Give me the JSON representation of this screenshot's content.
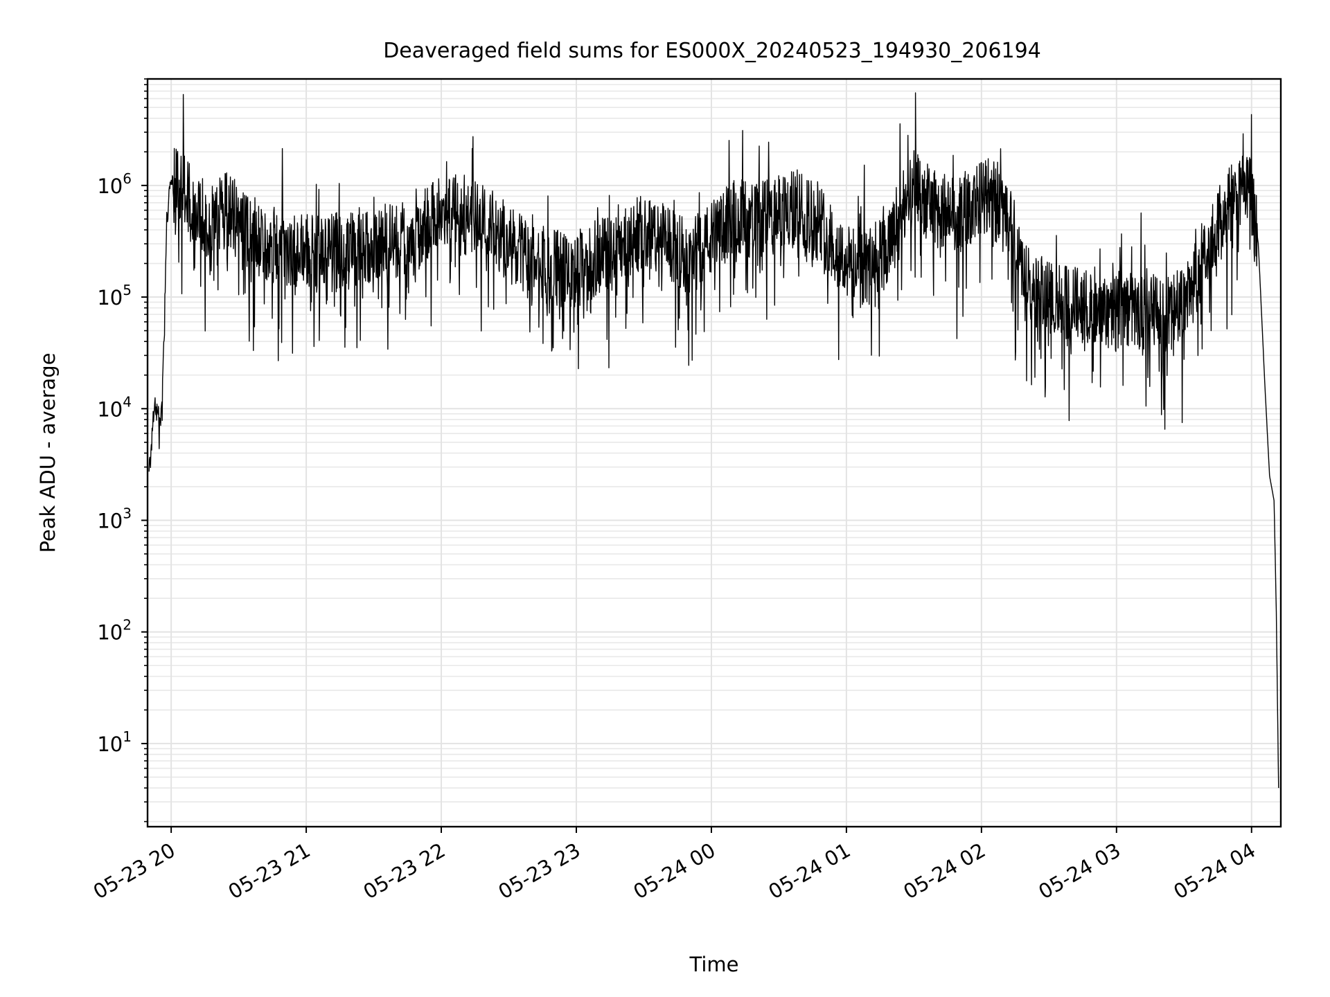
{
  "chart_data": {
    "type": "line",
    "title": "Deaveraged field sums for ES000X_20240523_194930_206194",
    "xlabel": "Time",
    "ylabel": "Peak ADU - average",
    "yscale": "log",
    "ylim": [
      1.8,
      9000000
    ],
    "xlim": [
      "2024-05-23 19:49:30",
      "2024-05-24 04:13:00"
    ],
    "grid": true,
    "x_ticks": [
      {
        "time": "2024-05-23 20:00",
        "label": "05-23 20"
      },
      {
        "time": "2024-05-23 21:00",
        "label": "05-23 21"
      },
      {
        "time": "2024-05-23 22:00",
        "label": "05-23 22"
      },
      {
        "time": "2024-05-23 23:00",
        "label": "05-23 23"
      },
      {
        "time": "2024-05-24 00:00",
        "label": "05-24 00"
      },
      {
        "time": "2024-05-24 01:00",
        "label": "05-24 01"
      },
      {
        "time": "2024-05-24 02:00",
        "label": "05-24 02"
      },
      {
        "time": "2024-05-24 03:00",
        "label": "05-24 03"
      },
      {
        "time": "2024-05-24 04:00",
        "label": "05-24 04"
      }
    ],
    "y_ticks": [
      {
        "value": 10,
        "base": "10",
        "exp": "1"
      },
      {
        "value": 100,
        "base": "10",
        "exp": "2"
      },
      {
        "value": 1000,
        "base": "10",
        "exp": "3"
      },
      {
        "value": 10000,
        "base": "10",
        "exp": "4"
      },
      {
        "value": 100000,
        "base": "10",
        "exp": "5"
      },
      {
        "value": 1000000,
        "base": "10",
        "exp": "6"
      }
    ],
    "series": [
      {
        "color": "#000000",
        "points": [
          [
            "2024-05-23 19:50",
            2500
          ],
          [
            "2024-05-23 19:51",
            4500
          ],
          [
            "2024-05-23 19:52",
            9000
          ],
          [
            "2024-05-23 19:53",
            11000
          ],
          [
            "2024-05-23 19:54",
            10000
          ],
          [
            "2024-05-23 19:55",
            7000
          ],
          [
            "2024-05-23 19:56",
            12000
          ],
          [
            "2024-05-23 19:57",
            60000
          ],
          [
            "2024-05-23 19:58",
            500000
          ],
          [
            "2024-05-23 20:00",
            1150000
          ],
          [
            "2024-05-23 20:03",
            1050000
          ],
          [
            "2024-05-23 20:06",
            900000
          ],
          [
            "2024-05-23 20:10",
            650000
          ],
          [
            "2024-05-23 20:15",
            550000
          ],
          [
            "2024-05-23 20:20",
            600000
          ],
          [
            "2024-05-23 20:25",
            650000
          ],
          [
            "2024-05-23 20:30",
            500000
          ],
          [
            "2024-05-23 20:40",
            350000
          ],
          [
            "2024-05-23 20:50",
            300000
          ],
          [
            "2024-05-23 21:00",
            300000
          ],
          [
            "2024-05-23 21:10",
            280000
          ],
          [
            "2024-05-23 21:20",
            300000
          ],
          [
            "2024-05-23 21:30",
            330000
          ],
          [
            "2024-05-23 21:40",
            330000
          ],
          [
            "2024-05-23 21:50",
            420000
          ],
          [
            "2024-05-23 22:00",
            700000
          ],
          [
            "2024-05-23 22:10",
            650000
          ],
          [
            "2024-05-23 22:20",
            480000
          ],
          [
            "2024-05-23 22:30",
            330000
          ],
          [
            "2024-05-23 22:40",
            220000
          ],
          [
            "2024-05-23 22:50",
            200000
          ],
          [
            "2024-05-23 23:00",
            190000
          ],
          [
            "2024-05-23 23:10",
            250000
          ],
          [
            "2024-05-23 23:20",
            350000
          ],
          [
            "2024-05-23 23:30",
            420000
          ],
          [
            "2024-05-23 23:40",
            320000
          ],
          [
            "2024-05-23 23:50",
            250000
          ],
          [
            "2024-05-24 00:00",
            350000
          ],
          [
            "2024-05-24 00:10",
            600000
          ],
          [
            "2024-05-24 00:20",
            520000
          ],
          [
            "2024-05-24 00:30",
            600000
          ],
          [
            "2024-05-24 00:40",
            700000
          ],
          [
            "2024-05-24 00:50",
            450000
          ],
          [
            "2024-05-24 01:00",
            220000
          ],
          [
            "2024-05-24 01:10",
            200000
          ],
          [
            "2024-05-24 01:20",
            330000
          ],
          [
            "2024-05-24 01:30",
            1000000
          ],
          [
            "2024-05-24 01:40",
            650000
          ],
          [
            "2024-05-24 01:50",
            600000
          ],
          [
            "2024-05-24 02:00",
            800000
          ],
          [
            "2024-05-24 02:05",
            1100000
          ],
          [
            "2024-05-24 02:10",
            550000
          ],
          [
            "2024-05-24 02:20",
            150000
          ],
          [
            "2024-05-24 02:30",
            100000
          ],
          [
            "2024-05-24 02:40",
            95000
          ],
          [
            "2024-05-24 02:50",
            90000
          ],
          [
            "2024-05-24 03:00",
            85000
          ],
          [
            "2024-05-24 03:10",
            80000
          ],
          [
            "2024-05-24 03:20",
            80000
          ],
          [
            "2024-05-24 03:30",
            85000
          ],
          [
            "2024-05-24 03:40",
            300000
          ],
          [
            "2024-05-24 03:50",
            750000
          ],
          [
            "2024-05-24 03:55",
            930000
          ],
          [
            "2024-05-24 04:00",
            900000
          ],
          [
            "2024-05-24 04:03",
            300000
          ],
          [
            "2024-05-24 04:06",
            15000
          ],
          [
            "2024-05-24 04:08",
            2500
          ],
          [
            "2024-05-24 04:10",
            1500
          ],
          [
            "2024-05-24 04:11",
            150
          ],
          [
            "2024-05-24 04:12",
            4
          ]
        ]
      }
    ]
  }
}
